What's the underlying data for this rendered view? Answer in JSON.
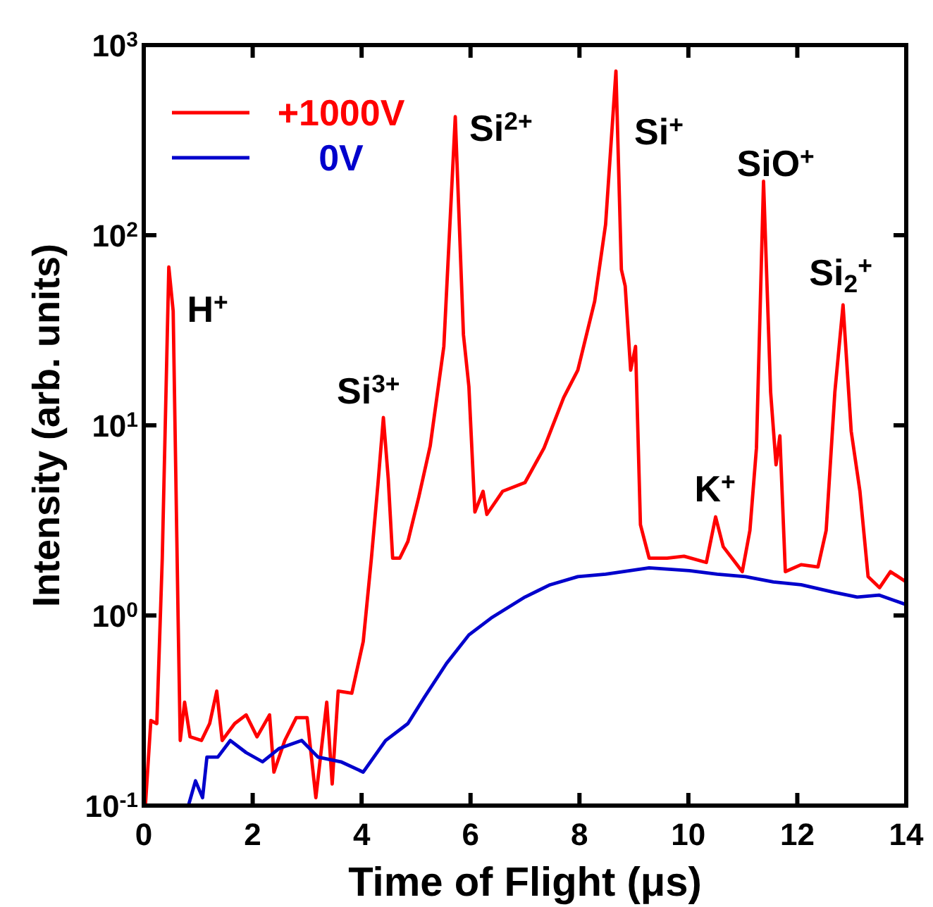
{
  "chart_data": {
    "type": "line",
    "xlabel": "Time of Flight (μs)",
    "ylabel": "Intensity (arb. units)",
    "log": "y",
    "xlim": [
      0,
      14
    ],
    "xticks": [
      0,
      2,
      4,
      6,
      8,
      10,
      12,
      14
    ],
    "ylim": [
      0.1,
      1000
    ],
    "yticks": [
      {
        "value": 0.1,
        "label": "10$^{-1}$"
      },
      {
        "value": 1,
        "label": "10$^{0}$"
      },
      {
        "value": 10,
        "label": "10$^{1}$"
      },
      {
        "value": 100,
        "label": "10$^{2}$"
      },
      {
        "value": 1000,
        "label": "10$^{3}$"
      }
    ],
    "legend": "top left",
    "grid": false,
    "line_style": "solid",
    "marker": "none",
    "series": [
      {
        "name": "+1000V",
        "color": "#ff0000",
        "x": [
          0.03,
          0.13,
          0.24,
          0.34,
          0.46,
          0.54,
          0.63,
          0.67,
          0.75,
          0.85,
          1.06,
          1.21,
          1.34,
          1.44,
          1.67,
          1.88,
          2.08,
          2.31,
          2.39,
          2.59,
          2.8,
          3.0,
          3.16,
          3.36,
          3.46,
          3.57,
          3.82,
          4.03,
          4.18,
          4.3,
          4.4,
          4.49,
          4.57,
          4.7,
          4.85,
          5.05,
          5.26,
          5.51,
          5.72,
          5.87,
          5.97,
          6.08,
          6.23,
          6.3,
          6.59,
          7.0,
          7.35,
          7.71,
          7.97,
          8.28,
          8.48,
          8.67,
          8.77,
          8.84,
          8.94,
          9.03,
          9.12,
          9.28,
          9.61,
          9.92,
          10.33,
          10.5,
          10.64,
          10.99,
          11.13,
          11.25,
          11.38,
          11.51,
          11.61,
          11.68,
          11.78,
          12.07,
          12.38,
          12.53,
          12.69,
          12.84,
          12.99,
          13.15,
          13.3,
          13.51,
          13.71,
          14.0
        ],
        "values": [
          0.1,
          0.28,
          0.27,
          2.0,
          68,
          40,
          1.0,
          0.22,
          0.35,
          0.23,
          0.22,
          0.27,
          0.4,
          0.22,
          0.27,
          0.3,
          0.23,
          0.3,
          0.15,
          0.22,
          0.29,
          0.29,
          0.11,
          0.35,
          0.13,
          0.4,
          0.39,
          0.73,
          2.0,
          4.9,
          11,
          5.2,
          2.0,
          2.0,
          2.45,
          4.2,
          7.8,
          26,
          420,
          30,
          16,
          3.5,
          4.5,
          3.4,
          4.5,
          5.0,
          7.6,
          14,
          19.5,
          45,
          114,
          730,
          66,
          54,
          19.5,
          26,
          3.0,
          2.0,
          2.0,
          2.05,
          1.9,
          3.3,
          2.3,
          1.7,
          2.8,
          7.6,
          192,
          15,
          6.2,
          8.8,
          1.7,
          1.85,
          1.8,
          2.8,
          15,
          43,
          9.3,
          4.5,
          1.6,
          1.4,
          1.7,
          1.5
        ]
      },
      {
        "name": "0V",
        "color": "#0000cc",
        "x": [
          0.82,
          0.95,
          1.08,
          1.16,
          1.36,
          1.59,
          1.88,
          2.18,
          2.49,
          2.9,
          3.2,
          3.62,
          4.03,
          4.44,
          4.85,
          5.15,
          5.56,
          5.97,
          6.38,
          7.0,
          7.46,
          7.97,
          8.48,
          9.28,
          10.02,
          10.53,
          11.05,
          11.56,
          12.07,
          12.69,
          13.1,
          13.5,
          14.0
        ],
        "values": [
          0.1,
          0.135,
          0.11,
          0.18,
          0.18,
          0.22,
          0.19,
          0.17,
          0.2,
          0.22,
          0.18,
          0.17,
          0.15,
          0.22,
          0.27,
          0.37,
          0.56,
          0.79,
          0.97,
          1.25,
          1.45,
          1.6,
          1.65,
          1.78,
          1.72,
          1.65,
          1.6,
          1.5,
          1.45,
          1.32,
          1.25,
          1.28,
          1.14
        ]
      }
    ],
    "annotations": [
      {
        "text": "H$^{+}$",
        "x": 0.46,
        "y": 68
      },
      {
        "text": "Si$^{3+}$",
        "x": 4.4,
        "y": 11
      },
      {
        "text": "Si$^{2+}$",
        "x": 5.72,
        "y": 420
      },
      {
        "text": "Si$^{+}$",
        "x": 8.67,
        "y": 730
      },
      {
        "text": "SiO$^{+}$",
        "x": 11.38,
        "y": 192
      },
      {
        "text": "K$^{+}$",
        "x": 10.5,
        "y": 3.3
      },
      {
        "text": "Si$_{2}$$^{+}$",
        "x": 12.84,
        "y": 43
      }
    ]
  }
}
